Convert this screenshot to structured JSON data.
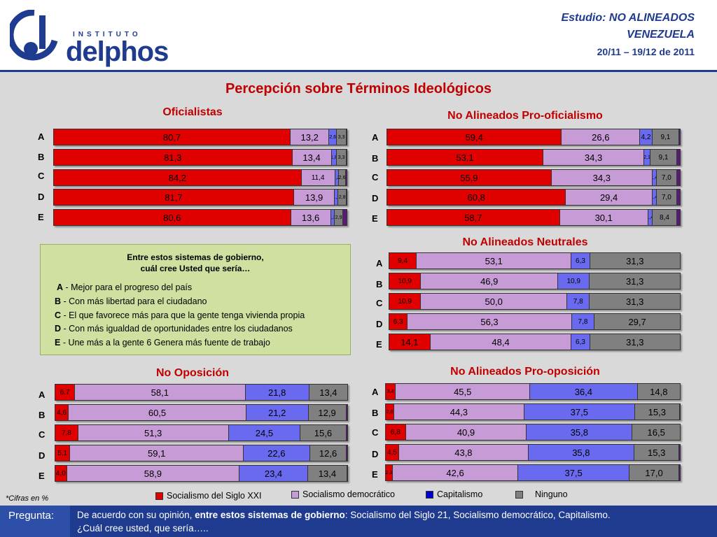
{
  "header": {
    "logo_small": "INSTITUTO",
    "logo_big": "delphos",
    "study_line1": "Estudio: NO ALINEADOS",
    "study_line2": "VENEZUELA",
    "date": "20/11 – 19/12 de 2011"
  },
  "main_title": "Percepción sobre Términos Ideológicos",
  "colors": {
    "socialismo_xxi": "#e00000",
    "socialismo_democratico": "#c79cd6",
    "capitalismo": "#6a6af0",
    "ninguno": "#808080",
    "ns_nc": "#5a1a7a"
  },
  "chart_data": [
    {
      "type": "bar",
      "title": "Oficialistas",
      "categories": [
        "A",
        "B",
        "C",
        "D",
        "E"
      ],
      "series": [
        {
          "name": "Socialismo del Siglo XXI",
          "values": [
            80.7,
            81.3,
            84.2,
            81.7,
            80.6
          ]
        },
        {
          "name": "Socialismo democrático",
          "values": [
            13.2,
            13.4,
            11.4,
            13.9,
            13.6
          ]
        },
        {
          "name": "Capitalismo",
          "values": [
            2.6,
            1.8,
            1.2,
            1.2,
            1.3
          ]
        },
        {
          "name": "Ninguno",
          "values": [
            3.3,
            3.3,
            2.6,
            2.8,
            2.9
          ]
        },
        {
          "name": "",
          "values": [
            0.2,
            0.2,
            0.6,
            0.4,
            1.6
          ]
        }
      ],
      "labels": [
        [
          "80,7",
          "13,2",
          "2,6",
          "3,3",
          ""
        ],
        [
          "81,3",
          "13,4",
          "1,8",
          "3,3",
          ""
        ],
        [
          "84,2",
          "11,4",
          "1,2",
          "2,6",
          ""
        ],
        [
          "81,7",
          "13,9",
          "1,2",
          "2,8",
          ""
        ],
        [
          "80,6",
          "13,6",
          "1,3",
          "2,9",
          ""
        ]
      ]
    },
    {
      "type": "bar",
      "title": "No Alineados Pro-oficialismo",
      "categories": [
        "A",
        "B",
        "C",
        "D",
        "E"
      ],
      "series": [
        {
          "name": "Socialismo del Siglo XXI",
          "values": [
            59.4,
            53.1,
            55.9,
            60.8,
            58.7
          ]
        },
        {
          "name": "Socialismo democrático",
          "values": [
            26.6,
            34.3,
            34.3,
            29.4,
            30.1
          ]
        },
        {
          "name": "Capitalismo",
          "values": [
            4.2,
            2.1,
            1.4,
            1.4,
            1.4
          ]
        },
        {
          "name": "Ninguno",
          "values": [
            9.1,
            9.1,
            7.0,
            7.0,
            8.4
          ]
        },
        {
          "name": "",
          "values": [
            0.7,
            1.4,
            1.4,
            1.4,
            1.4
          ]
        }
      ],
      "labels": [
        [
          "59,4",
          "26,6",
          "4,2",
          "9,1",
          ""
        ],
        [
          "53,1",
          "34,3",
          "2,1",
          "9,1",
          ""
        ],
        [
          "55,9",
          "34,3",
          "1,4",
          "7,0",
          ""
        ],
        [
          "60,8",
          "29,4",
          "1,4",
          "7,0",
          ""
        ],
        [
          "58,7",
          "30,1",
          "1,4",
          "8,4",
          ""
        ]
      ]
    },
    {
      "type": "bar",
      "title": "No Alineados Neutrales",
      "categories": [
        "A",
        "B",
        "C",
        "D",
        "E"
      ],
      "series": [
        {
          "name": "Socialismo del Siglo XXI",
          "values": [
            9.4,
            10.9,
            10.9,
            6.3,
            14.1
          ]
        },
        {
          "name": "Socialismo democrático",
          "values": [
            53.1,
            46.9,
            50.0,
            56.3,
            48.4
          ]
        },
        {
          "name": "Capitalismo",
          "values": [
            6.3,
            10.9,
            7.8,
            7.8,
            6.3
          ]
        },
        {
          "name": "Ninguno",
          "values": [
            31.3,
            31.3,
            31.3,
            29.7,
            31.3
          ]
        }
      ],
      "labels": [
        [
          "9,4",
          "53,1",
          "6,3",
          "31,3"
        ],
        [
          "10,9",
          "46,9",
          "10,9",
          "31,3"
        ],
        [
          "10,9",
          "50,0",
          "7,8",
          "31,3"
        ],
        [
          "6,3",
          "56,3",
          "7,8",
          "29,7"
        ],
        [
          "14,1",
          "48,4",
          "6,3",
          "31,3"
        ]
      ]
    },
    {
      "type": "bar",
      "title": "No Oposición",
      "categories": [
        "A",
        "B",
        "C",
        "D",
        "E"
      ],
      "series": [
        {
          "name": "Socialismo del Siglo XXI",
          "values": [
            6.7,
            4.6,
            7.8,
            5.1,
            4.0
          ]
        },
        {
          "name": "Socialismo democrático",
          "values": [
            58.1,
            60.5,
            51.3,
            59.1,
            58.9
          ]
        },
        {
          "name": "Capitalismo",
          "values": [
            21.8,
            21.2,
            24.5,
            22.6,
            23.4
          ]
        },
        {
          "name": "Ninguno",
          "values": [
            13.4,
            12.9,
            15.6,
            12.6,
            13.4
          ]
        },
        {
          "name": "",
          "values": [
            0.0,
            0.8,
            0.8,
            0.6,
            0.3
          ]
        }
      ],
      "labels": [
        [
          "6,7",
          "58,1",
          "21,8",
          "13,4",
          ""
        ],
        [
          "4,6",
          "60,5",
          "21,2",
          "12,9",
          ""
        ],
        [
          "7,8",
          "51,3",
          "24,5",
          "15,6",
          ""
        ],
        [
          "5,1",
          "59,1",
          "22,6",
          "12,6",
          ""
        ],
        [
          "4,0",
          "58,9",
          "23,4",
          "13,4",
          ""
        ]
      ]
    },
    {
      "type": "bar",
      "title": "No Alineados Pro-oposición",
      "categories": [
        "A",
        "B",
        "C",
        "D",
        "E"
      ],
      "series": [
        {
          "name": "Socialismo del Siglo XXI",
          "values": [
            3.4,
            2.8,
            6.8,
            4.5,
            2.3
          ]
        },
        {
          "name": "Socialismo democrático",
          "values": [
            45.5,
            44.3,
            40.9,
            43.8,
            42.6
          ]
        },
        {
          "name": "Capitalismo",
          "values": [
            36.4,
            37.5,
            35.8,
            35.8,
            37.5
          ]
        },
        {
          "name": "Ninguno",
          "values": [
            14.8,
            15.3,
            16.5,
            15.3,
            17.0
          ]
        },
        {
          "name": "",
          "values": [
            0.0,
            0.1,
            0.0,
            0.6,
            0.6
          ]
        }
      ],
      "labels": [
        [
          "3,4",
          "45,5",
          "36,4",
          "14,8",
          ""
        ],
        [
          "2,8",
          "44,3",
          "37,5",
          "15,3",
          ""
        ],
        [
          "6,8",
          "40,9",
          "35,8",
          "16,5",
          ""
        ],
        [
          "4,5",
          "43,8",
          "35,8",
          "15,3",
          ""
        ],
        [
          "2,3",
          "42,6",
          "37,5",
          "17,0",
          ""
        ]
      ]
    }
  ],
  "question_box": {
    "title_line1": "Entre estos sistemas de gobierno,",
    "title_line2": "cuál cree Usted que sería…",
    "options": [
      {
        "key": "A",
        "text": " - Mejor para el progreso del país"
      },
      {
        "key": "B",
        "text": " - Con más libertad para el ciudadano"
      },
      {
        "key": "C",
        "text": " - El que favorece más para que la gente tenga vivienda propia"
      },
      {
        "key": "D",
        "text": " - Con más igualdad de oportunidades entre los ciudadanos"
      },
      {
        "key": "E",
        "text": " - Une más a la gente 6 Genera más fuente de trabajo"
      }
    ]
  },
  "legend": {
    "items": [
      "Socialismo del Siglo XXI",
      "Socialismo democrático",
      "Capitalismo",
      "Ninguno"
    ]
  },
  "footnote": "*Cifras en %",
  "question_bar": {
    "label": "Pregunta:",
    "text_pre": "De acuerdo con su opinión, ",
    "text_bold": "entre estos sistemas de gobierno",
    "text_post": ": Socialismo del Siglo 21, Socialismo democrático, Capitalismo.",
    "text_line2": "¿Cuál cree usted, que sería….."
  }
}
